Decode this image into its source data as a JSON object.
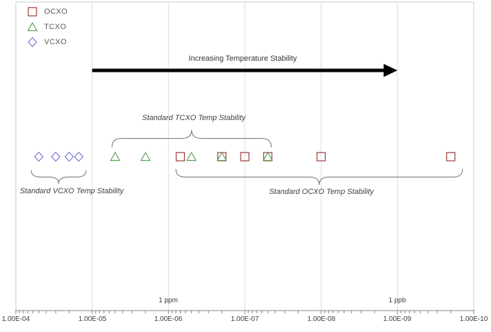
{
  "legend": {
    "items": [
      {
        "label": "OCXO",
        "marker": "square",
        "color": "#993734"
      },
      {
        "label": "TCXO",
        "marker": "triangle",
        "color": "#57a257"
      },
      {
        "label": "VCXO",
        "marker": "diamond",
        "color": "#7473d6"
      }
    ]
  },
  "chart_data": {
    "type": "scatter",
    "title": "",
    "xlabel": "",
    "ylabel": "",
    "x_axis": {
      "scale": "log",
      "direction": "decreasing",
      "range": [
        0.0001,
        1e-10
      ],
      "tick_labels": [
        "1.00E-04",
        "1.00E-05",
        "1.00E-06",
        "1.00E-07",
        "1.00E-08",
        "1.00E-09",
        "1.00E-10"
      ],
      "gridlines": true,
      "minor_ticks": true
    },
    "series": [
      {
        "name": "OCXO",
        "marker": "square",
        "color": "#993734",
        "values": [
          7e-07,
          2e-07,
          1e-07,
          5e-08,
          1e-08,
          2e-10
        ]
      },
      {
        "name": "TCXO",
        "marker": "triangle",
        "color": "#57a257",
        "values": [
          5e-06,
          2e-06,
          5e-07,
          2e-07,
          5e-08
        ]
      },
      {
        "name": "VCXO",
        "marker": "diamond",
        "color": "#7473d6",
        "values": [
          5e-05,
          3e-05,
          2e-05,
          1.5e-05
        ]
      }
    ],
    "annotations": {
      "arrow_label": "Increasing Temperature Stability",
      "arrow_range": [
        1e-05,
        1e-09
      ],
      "braces": [
        {
          "name": "tcxo-brace",
          "label": "Standard TCXO Temp Stability",
          "from": 5.5e-06,
          "to": 4.5e-08,
          "tip": "up"
        },
        {
          "name": "vcxo-brace",
          "label": "Standard VCXO Temp Stability",
          "from": 6.3e-05,
          "to": 1.2e-05,
          "tip": "down"
        },
        {
          "name": "ocxo-brace",
          "label": "Standard OCXO Temp Stability",
          "from": 8e-07,
          "to": 1.4e-10,
          "tip": "down"
        }
      ],
      "unit_labels": [
        {
          "text": "1 ppm",
          "value": 1e-06
        },
        {
          "text": "1 ppb",
          "value": 1e-09
        }
      ]
    },
    "colors": {
      "grid": "#dcdcdc",
      "plot_border": "#c9c9c9",
      "axis": "#808080",
      "arrow": "#000000",
      "brace": "#6e6e6e"
    }
  }
}
